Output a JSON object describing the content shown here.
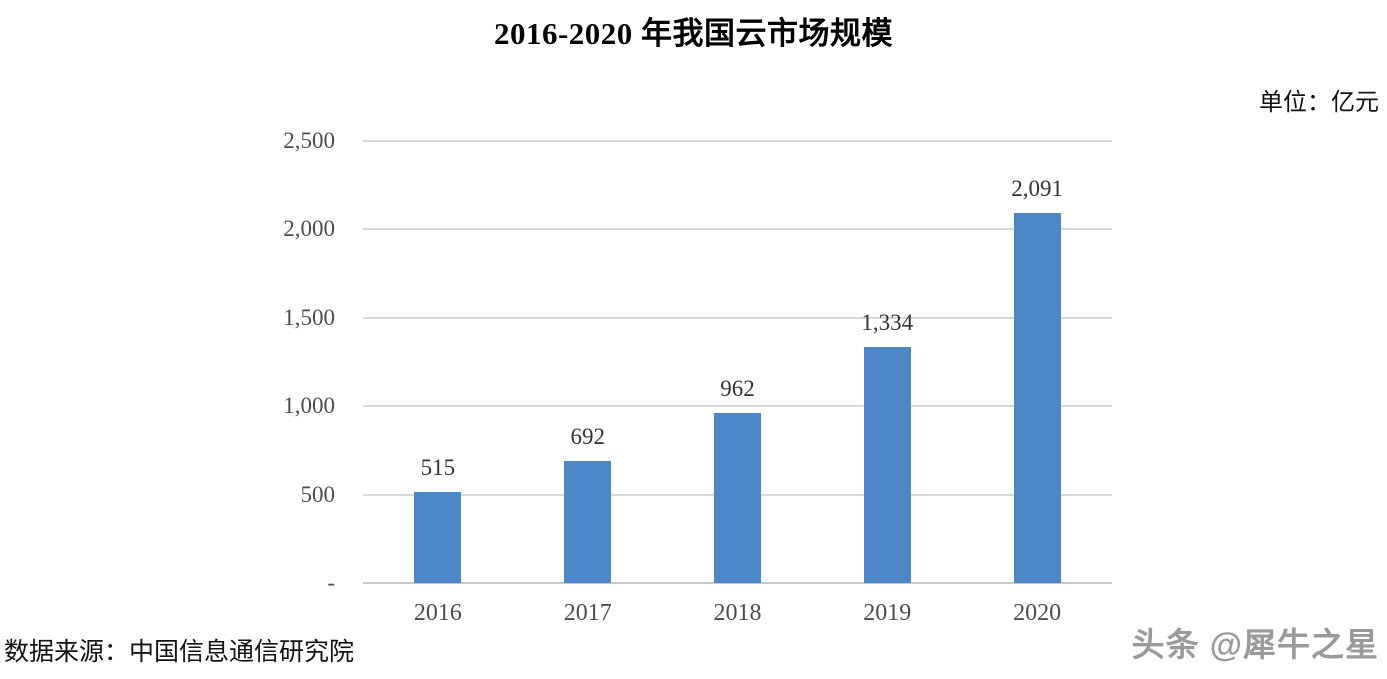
{
  "title": "2016-2020 年我国云市场规模",
  "unit_label": "单位：亿元",
  "source_label": "数据来源：中国信息通信研究院",
  "watermark": "头条 @犀牛之星",
  "chart_data": {
    "type": "bar",
    "title": "2016-2020 年我国云市场规模",
    "categories": [
      "2016",
      "2017",
      "2018",
      "2019",
      "2020"
    ],
    "values": [
      515,
      692,
      962,
      1334,
      2091
    ],
    "value_labels": [
      "515",
      "692",
      "962",
      "1,334",
      "2,091"
    ],
    "unit": "亿元",
    "xlabel": "",
    "ylabel": "",
    "ylim": [
      0,
      2500
    ],
    "ytick_values": [
      0,
      500,
      1000,
      1500,
      2000,
      2500
    ],
    "ytick_labels": [
      "-",
      "500",
      "1,000",
      "1,500",
      "2,000",
      "2,500"
    ],
    "grid": true,
    "legend": false,
    "bar_color": "#4e87c8",
    "gridline_color": "#d9d9d9"
  }
}
